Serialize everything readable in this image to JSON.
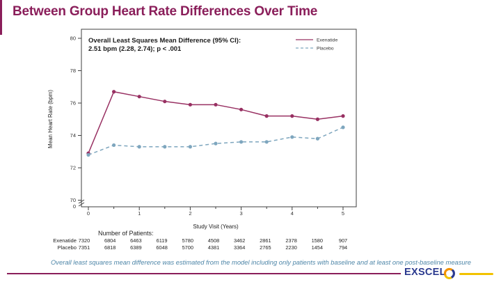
{
  "title": "Between Group Heart Rate Differences Over Time",
  "colors": {
    "maroon": "#8A1E5A",
    "exenatide_line": "#983062",
    "placebo_line": "#7EA6BE",
    "note_blue": "#4E86A8",
    "navy": "#2B3A8F",
    "gold": "#F2C200",
    "logo_orange": "#F39200",
    "axis": "#3F3F3F"
  },
  "chart_data": {
    "type": "line",
    "title": "",
    "annotation": {
      "line1": "Overall Least Squares Mean Difference (95% CI):",
      "line2": "2.51 bpm (2.28, 2.74); p < .001"
    },
    "xlabel": "Study Visit (Years)",
    "ylabel": "Mean Heart Rate (bpm)",
    "x": [
      0,
      0.5,
      1,
      1.5,
      2,
      2.5,
      3,
      3.5,
      4,
      4.5,
      5
    ],
    "series": [
      {
        "name": "Exenatide",
        "dash": false,
        "color": "#983062",
        "values": [
          72.9,
          76.7,
          76.4,
          76.1,
          75.9,
          75.9,
          75.6,
          75.2,
          75.2,
          75.0,
          75.2
        ]
      },
      {
        "name": "Placebo",
        "dash": true,
        "color": "#7EA6BE",
        "values": [
          72.8,
          73.4,
          73.3,
          73.3,
          73.3,
          73.5,
          73.6,
          73.6,
          73.9,
          73.8,
          74.5
        ]
      }
    ],
    "y_ticks": [
      80,
      78,
      76,
      74,
      72,
      70
    ],
    "y_break_label": "0",
    "x_ticks": [
      0,
      1,
      2,
      3,
      4,
      5
    ],
    "ylim": [
      70,
      80
    ],
    "xlim": [
      0,
      5
    ],
    "legend_position": "top-right",
    "grid": false
  },
  "patients_table": {
    "title": "Number of Patients:",
    "rows": [
      {
        "label": "Exenatide",
        "values": [
          "7320",
          "6804",
          "6463",
          "6119",
          "5780",
          "4508",
          "3462",
          "2861",
          "2378",
          "1580",
          "907"
        ]
      },
      {
        "label": "Placebo",
        "values": [
          "7351",
          "6818",
          "6389",
          "6048",
          "5700",
          "4381",
          "3364",
          "2765",
          "2230",
          "1454",
          "794"
        ]
      }
    ]
  },
  "footnote": "Overall least squares mean difference was estimated from the model including only patients with baseline and at least one post-baseline measure",
  "footer": {
    "logo_text": "EXSCEL"
  }
}
